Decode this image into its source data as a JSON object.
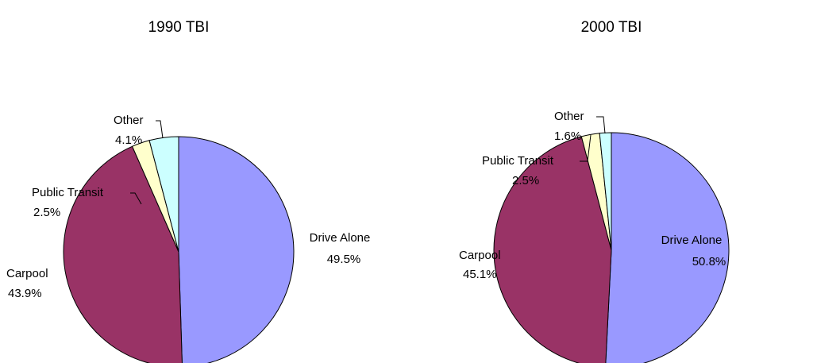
{
  "chart_data": [
    {
      "type": "pie",
      "title": "1990 TBI",
      "categories": [
        "Drive Alone",
        "Carpool",
        "Public Transit",
        "Other"
      ],
      "values": [
        49.5,
        43.9,
        2.5,
        4.1
      ],
      "value_labels": [
        "49.5%",
        "43.9%",
        "2.5%",
        "4.1%"
      ],
      "colors": [
        "#9999ff",
        "#993366",
        "#ffffcc",
        "#ccffff"
      ]
    },
    {
      "type": "pie",
      "title": "2000 TBI",
      "categories": [
        "Drive Alone",
        "Carpool",
        "Public Transit",
        "Other"
      ],
      "values": [
        50.8,
        45.1,
        2.5,
        1.6
      ],
      "value_labels": [
        "50.8%",
        "45.1%",
        "2.5%",
        "1.6%"
      ],
      "colors": [
        "#9999ff",
        "#993366",
        "#ffffcc",
        "#ccffff"
      ]
    }
  ]
}
